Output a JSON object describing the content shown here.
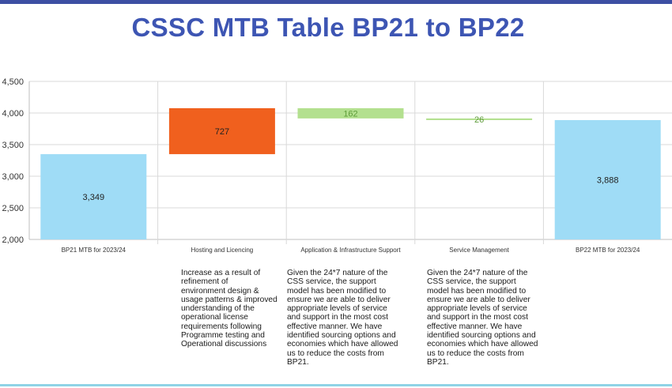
{
  "slide": {
    "title": "CSSC MTB Table BP21 to BP22"
  },
  "chart_data": {
    "type": "waterfall",
    "title": "",
    "xlabel": "",
    "ylabel": "",
    "ylim": [
      2000,
      4500
    ],
    "yticks": [
      2000,
      2500,
      3000,
      3500,
      4000,
      4500
    ],
    "ytick_labels": [
      "2,000",
      "2,500",
      "3,000",
      "3,500",
      "4,000",
      "4,500"
    ],
    "grid": true,
    "legend": "none",
    "categories": [
      "BP21 MTB for 2023/24",
      "Hosting and Licencing",
      "Application & Infrastructure Support",
      "Service Management",
      "BP22 MTB for 2023/24"
    ],
    "bars": [
      {
        "kind": "total",
        "start": 2000,
        "end": 3349,
        "label": "3,349",
        "color": "#9fdcf6",
        "label_color": "#222222"
      },
      {
        "kind": "increase",
        "start": 3349,
        "end": 4076,
        "label": "727",
        "color": "#f0601e",
        "label_color": "#222222"
      },
      {
        "kind": "decrease",
        "start": 4076,
        "end": 3914,
        "label": "162",
        "color": "#b3e08f",
        "label_color": "#5e9c3a"
      },
      {
        "kind": "decrease",
        "start": 3914,
        "end": 3888,
        "label": "26",
        "color": "#b3e08f",
        "label_color": "#5e9c3a"
      },
      {
        "kind": "total",
        "start": 2000,
        "end": 3888,
        "label": "3,888",
        "color": "#9fdcf6",
        "label_color": "#222222"
      }
    ]
  },
  "notes": {
    "hosting": "Increase as a result of\nrefinement of\n environment design &\nusage patterns & improved\nunderstanding of the\noperational license\nrequirements following\nProgramme testing and\nOperational discussions",
    "app_support": "Given the 24*7 nature of the\nCSS service, the support\nmodel has been modified to\nensure we are able to deliver\nappropriate levels of service\nand support in the most cost\neffective manner. We have\nidentified sourcing options and\neconomies which have allowed\nus to reduce the costs from\nBP21.",
    "service_mgmt": "Given the 24*7 nature of the\nCSS service, the support\nmodel has been modified to\nensure we are able to deliver\nappropriate levels of service\nand support in the most cost\neffective manner. We have\nidentified sourcing options and\neconomies which have allowed\nus to reduce the costs from\nBP21."
  },
  "colors": {
    "title": "#3d55b3",
    "accent_bar": "#3d4fa3",
    "gridline": "#d9d9d9",
    "axis": "#bfbfbf"
  }
}
